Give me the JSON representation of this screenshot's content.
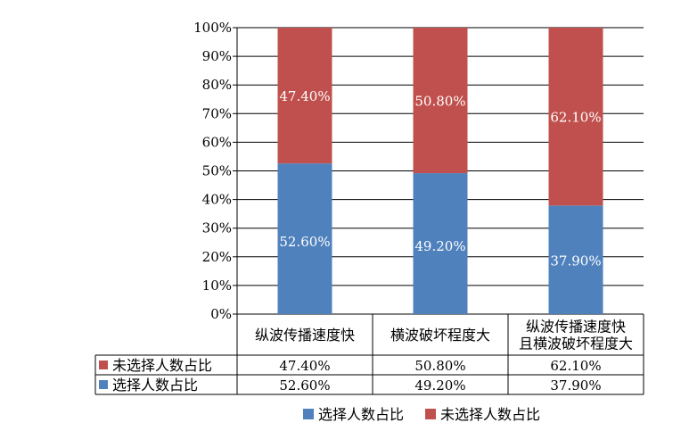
{
  "chart_data": {
    "type": "bar",
    "stacked": true,
    "categories": [
      [
        "纵波传播速度快"
      ],
      [
        "横波破坏程度大"
      ],
      [
        "纵波传播速度快",
        "且横波破坏程度大"
      ]
    ],
    "series": [
      {
        "name": "选择人数占比",
        "color": "#4f81bd",
        "values": [
          52.6,
          49.2,
          37.9
        ],
        "labels": [
          "52.60%",
          "49.20%",
          "37.90%"
        ]
      },
      {
        "name": "未选择人数占比",
        "color": "#c0504d",
        "values": [
          47.4,
          50.8,
          62.1
        ],
        "labels": [
          "47.40%",
          "50.80%",
          "62.10%"
        ]
      }
    ],
    "ylim": [
      0,
      100
    ],
    "yticks": [
      "0%",
      "10%",
      "20%",
      "30%",
      "40%",
      "50%",
      "60%",
      "70%",
      "80%",
      "90%",
      "100%"
    ],
    "grid": true,
    "legend": {
      "position": "bottom",
      "order": [
        "选择人数占比",
        "未选择人数占比"
      ]
    },
    "data_table": {
      "rows": [
        {
          "series": "未选择人数占比",
          "values": [
            "47.40%",
            "50.80%",
            "62.10%"
          ]
        },
        {
          "series": "选择人数占比",
          "values": [
            "52.60%",
            "49.20%",
            "37.90%"
          ]
        }
      ]
    }
  }
}
